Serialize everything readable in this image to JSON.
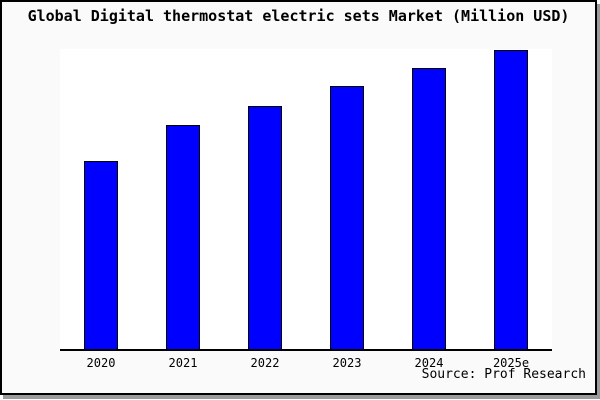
{
  "colors": {
    "bar_fill": "#0000FE",
    "bar_border": "#000000",
    "card_background": "#FAFAFA",
    "plot_background": "#FFFFFF",
    "frame_border": "#000000",
    "drop_shadow": "#9B9B9B",
    "text": "#000000"
  },
  "chart_data": {
    "type": "bar",
    "title": "Global Digital thermostat electric sets Market (Million USD)",
    "categories": [
      "2020",
      "2021",
      "2022",
      "2023",
      "2024",
      "2025e"
    ],
    "values_pct_of_max": [
      62.8,
      74.9,
      81.4,
      88.0,
      93.9,
      100
    ],
    "note": "No y-axis tick labels or gridlines are shown; values are bar heights relative to the tallest bar (2025e = 100).",
    "xlabel": "",
    "ylabel": "",
    "grid": false,
    "legend": false,
    "bar_color": "#0000FE",
    "source": "Source: Prof Research"
  }
}
